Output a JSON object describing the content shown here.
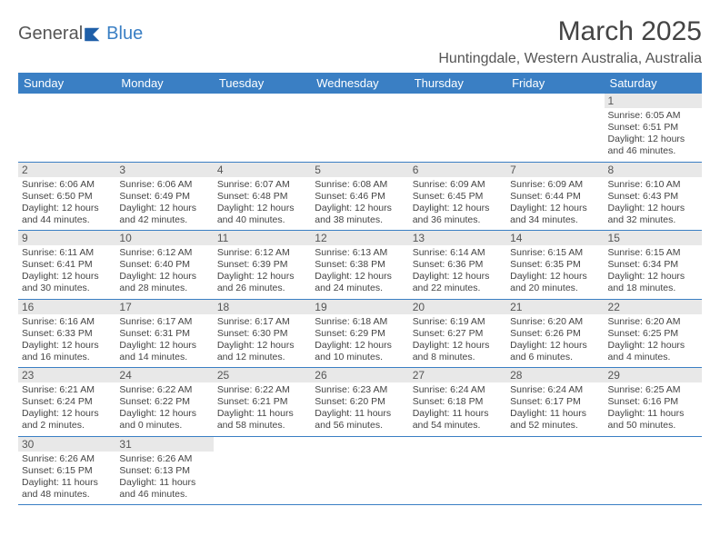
{
  "logo": {
    "text1": "General",
    "text2": "Blue"
  },
  "title": "March 2025",
  "location": "Huntingdale, Western Australia, Australia",
  "colors": {
    "header_bg": "#3a7fc4",
    "daynum_bg": "#e8e8e8",
    "text": "#444444",
    "border": "#3a7fc4"
  },
  "day_headers": [
    "Sunday",
    "Monday",
    "Tuesday",
    "Wednesday",
    "Thursday",
    "Friday",
    "Saturday"
  ],
  "weeks": [
    [
      null,
      null,
      null,
      null,
      null,
      null,
      {
        "n": "1",
        "sr": "6:05 AM",
        "ss": "6:51 PM",
        "dl": "12 hours and 46 minutes."
      }
    ],
    [
      {
        "n": "2",
        "sr": "6:06 AM",
        "ss": "6:50 PM",
        "dl": "12 hours and 44 minutes."
      },
      {
        "n": "3",
        "sr": "6:06 AM",
        "ss": "6:49 PM",
        "dl": "12 hours and 42 minutes."
      },
      {
        "n": "4",
        "sr": "6:07 AM",
        "ss": "6:48 PM",
        "dl": "12 hours and 40 minutes."
      },
      {
        "n": "5",
        "sr": "6:08 AM",
        "ss": "6:46 PM",
        "dl": "12 hours and 38 minutes."
      },
      {
        "n": "6",
        "sr": "6:09 AM",
        "ss": "6:45 PM",
        "dl": "12 hours and 36 minutes."
      },
      {
        "n": "7",
        "sr": "6:09 AM",
        "ss": "6:44 PM",
        "dl": "12 hours and 34 minutes."
      },
      {
        "n": "8",
        "sr": "6:10 AM",
        "ss": "6:43 PM",
        "dl": "12 hours and 32 minutes."
      }
    ],
    [
      {
        "n": "9",
        "sr": "6:11 AM",
        "ss": "6:41 PM",
        "dl": "12 hours and 30 minutes."
      },
      {
        "n": "10",
        "sr": "6:12 AM",
        "ss": "6:40 PM",
        "dl": "12 hours and 28 minutes."
      },
      {
        "n": "11",
        "sr": "6:12 AM",
        "ss": "6:39 PM",
        "dl": "12 hours and 26 minutes."
      },
      {
        "n": "12",
        "sr": "6:13 AM",
        "ss": "6:38 PM",
        "dl": "12 hours and 24 minutes."
      },
      {
        "n": "13",
        "sr": "6:14 AM",
        "ss": "6:36 PM",
        "dl": "12 hours and 22 minutes."
      },
      {
        "n": "14",
        "sr": "6:15 AM",
        "ss": "6:35 PM",
        "dl": "12 hours and 20 minutes."
      },
      {
        "n": "15",
        "sr": "6:15 AM",
        "ss": "6:34 PM",
        "dl": "12 hours and 18 minutes."
      }
    ],
    [
      {
        "n": "16",
        "sr": "6:16 AM",
        "ss": "6:33 PM",
        "dl": "12 hours and 16 minutes."
      },
      {
        "n": "17",
        "sr": "6:17 AM",
        "ss": "6:31 PM",
        "dl": "12 hours and 14 minutes."
      },
      {
        "n": "18",
        "sr": "6:17 AM",
        "ss": "6:30 PM",
        "dl": "12 hours and 12 minutes."
      },
      {
        "n": "19",
        "sr": "6:18 AM",
        "ss": "6:29 PM",
        "dl": "12 hours and 10 minutes."
      },
      {
        "n": "20",
        "sr": "6:19 AM",
        "ss": "6:27 PM",
        "dl": "12 hours and 8 minutes."
      },
      {
        "n": "21",
        "sr": "6:20 AM",
        "ss": "6:26 PM",
        "dl": "12 hours and 6 minutes."
      },
      {
        "n": "22",
        "sr": "6:20 AM",
        "ss": "6:25 PM",
        "dl": "12 hours and 4 minutes."
      }
    ],
    [
      {
        "n": "23",
        "sr": "6:21 AM",
        "ss": "6:24 PM",
        "dl": "12 hours and 2 minutes."
      },
      {
        "n": "24",
        "sr": "6:22 AM",
        "ss": "6:22 PM",
        "dl": "12 hours and 0 minutes."
      },
      {
        "n": "25",
        "sr": "6:22 AM",
        "ss": "6:21 PM",
        "dl": "11 hours and 58 minutes."
      },
      {
        "n": "26",
        "sr": "6:23 AM",
        "ss": "6:20 PM",
        "dl": "11 hours and 56 minutes."
      },
      {
        "n": "27",
        "sr": "6:24 AM",
        "ss": "6:18 PM",
        "dl": "11 hours and 54 minutes."
      },
      {
        "n": "28",
        "sr": "6:24 AM",
        "ss": "6:17 PM",
        "dl": "11 hours and 52 minutes."
      },
      {
        "n": "29",
        "sr": "6:25 AM",
        "ss": "6:16 PM",
        "dl": "11 hours and 50 minutes."
      }
    ],
    [
      {
        "n": "30",
        "sr": "6:26 AM",
        "ss": "6:15 PM",
        "dl": "11 hours and 48 minutes."
      },
      {
        "n": "31",
        "sr": "6:26 AM",
        "ss": "6:13 PM",
        "dl": "11 hours and 46 minutes."
      },
      null,
      null,
      null,
      null,
      null
    ]
  ],
  "labels": {
    "sunrise": "Sunrise:",
    "sunset": "Sunset:",
    "daylight": "Daylight:"
  }
}
